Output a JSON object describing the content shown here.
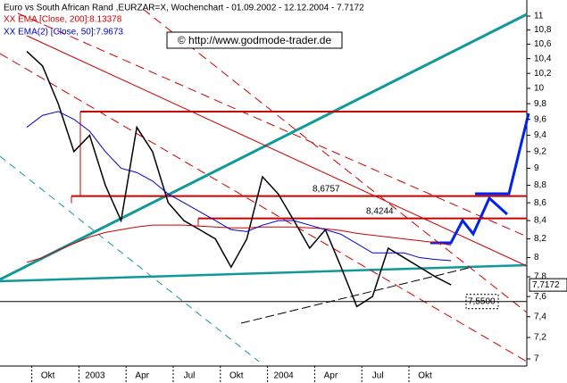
{
  "chart_data": {
    "type": "line",
    "title": "Euro vs South African Rand ,EURZAR=X, Wochenchart - 01.09.2002 - 12.12.2004 - 7.7172",
    "copyright": "© http://www.godmode-trader.de",
    "log": true,
    "grid": false,
    "x": [
      "2002-09",
      "2002-10",
      "2002-11",
      "2002-12",
      "2003-01",
      "2003-02",
      "2003-03",
      "2003-04",
      "2003-05",
      "2003-06",
      "2003-07",
      "2003-08",
      "2003-09",
      "2003-10",
      "2003-11",
      "2003-12",
      "2004-01",
      "2004-02",
      "2004-03",
      "2004-04",
      "2004-05",
      "2004-06",
      "2004-07",
      "2004-08",
      "2004-09",
      "2004-10",
      "2004-11",
      "2004-12"
    ],
    "series": [
      {
        "name": "EURZAR=X",
        "color": "#000000",
        "values": [
          10.5,
          10.3,
          9.8,
          9.2,
          9.4,
          8.8,
          8.4,
          9.5,
          9.2,
          8.6,
          8.4,
          8.3,
          8.2,
          7.9,
          8.2,
          8.9,
          8.7,
          8.4,
          8.1,
          8.3,
          7.9,
          7.5,
          7.6,
          8.1,
          8.0,
          7.9,
          7.8,
          7.7172
        ]
      },
      {
        "name": "XX EMA [Close, 200]:8.13378",
        "color": "#cc0000",
        "values": [
          7.95,
          8.0,
          8.08,
          8.15,
          8.22,
          8.27,
          8.3,
          8.33,
          8.35,
          8.35,
          8.35,
          8.34,
          8.33,
          8.32,
          8.32,
          8.33,
          8.33,
          8.33,
          8.32,
          8.31,
          8.29,
          8.26,
          8.24,
          8.22,
          8.2,
          8.18,
          8.16,
          8.13378
        ]
      },
      {
        "name": "XX EMA(2) [Close, 50]:7.9673",
        "color": "#0000cc",
        "values": [
          9.5,
          9.65,
          9.7,
          9.6,
          9.45,
          9.2,
          9.0,
          8.95,
          8.85,
          8.7,
          8.6,
          8.5,
          8.4,
          8.3,
          8.28,
          8.35,
          8.4,
          8.4,
          8.35,
          8.3,
          8.25,
          8.15,
          8.05,
          8.05,
          8.05,
          8.0,
          7.98,
          7.9673
        ]
      }
    ],
    "last_value": {
      "value": 7.7172,
      "label": "7,7172"
    },
    "levels": [
      {
        "value": 8.6757,
        "label": "8,6757"
      },
      {
        "value": 8.4244,
        "label": "8,4244"
      },
      {
        "value": 7.55,
        "label": "7,5500"
      }
    ],
    "ylim": [
      7,
      11
    ],
    "yticks": [
      7,
      {
        "value": 7.2,
        "label": "7,2"
      },
      {
        "value": 7.4,
        "label": "7,4"
      },
      {
        "value": 7.6,
        "label": "7,6"
      },
      {
        "value": 7.8,
        "label": "7,8"
      },
      8,
      {
        "value": 8.2,
        "label": "8,2"
      },
      {
        "value": 8.4,
        "label": "8,4"
      },
      {
        "value": 8.6,
        "label": "8,6"
      },
      {
        "value": 8.8,
        "label": "8,8"
      },
      9,
      {
        "value": 9.2,
        "label": "9,2"
      },
      {
        "value": 9.4,
        "label": "9,4"
      },
      {
        "value": 9.6,
        "label": "9,6"
      },
      {
        "value": 9.8,
        "label": "9,8"
      },
      10,
      {
        "value": 10.2,
        "label": "10,2"
      },
      {
        "value": 10.4,
        "label": "10,4"
      },
      {
        "value": 10.6,
        "label": "10,6"
      },
      {
        "value": 10.8,
        "label": "10,8"
      },
      11
    ],
    "xticks": [
      {
        "value": "2002-10",
        "label": "Okt"
      },
      {
        "value": "2003-01",
        "label": "2003"
      },
      {
        "value": "2003-04",
        "label": "Apr"
      },
      {
        "value": "2003-07",
        "label": "Jul"
      },
      {
        "value": "2003-10",
        "label": "Okt"
      },
      {
        "value": "2004-01",
        "label": "2004"
      },
      {
        "value": "2004-04",
        "label": "Apr"
      },
      {
        "value": "2004-07",
        "label": "Jul"
      },
      {
        "value": "2004-10",
        "label": "Okt"
      }
    ]
  }
}
